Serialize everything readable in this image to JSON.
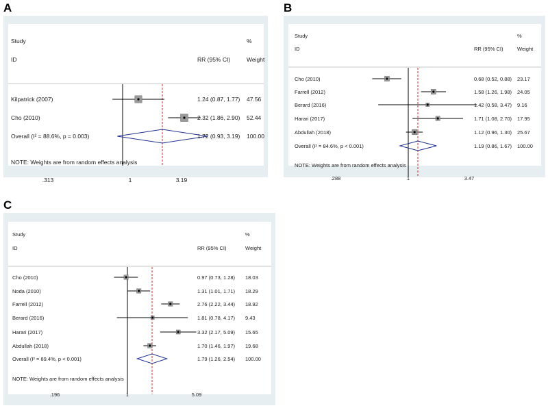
{
  "colors": {
    "bg": "#e7eef2",
    "plot": "#ffffff",
    "ref": "#d12c2c",
    "diamond": "#1f2f8f"
  },
  "chart_data": [
    {
      "panel": "A",
      "type": "forest",
      "header": {
        "study": "Study",
        "id": "ID",
        "rr": "RR (95% CI)",
        "pct": "%",
        "weight": "Weight"
      },
      "studies": [
        {
          "name": "Kilpatrick (2007)",
          "rr": 1.24,
          "lo": 0.87,
          "hi": 1.77,
          "label": "1.24 (0.87, 1.77)",
          "weight": "47.56"
        },
        {
          "name": "Cho (2010)",
          "rr": 2.32,
          "lo": 1.86,
          "hi": 2.9,
          "label": "2.32 (1.86, 2.90)",
          "weight": "52.44"
        }
      ],
      "overall": {
        "name": "Overall (I² = 88.6%, p = 0.003)",
        "rr": 1.72,
        "lo": 0.93,
        "hi": 3.19,
        "label": "1.72 (0.93, 3.19)",
        "weight": "100.00"
      },
      "note": "NOTE: Weights are from random effects analysis",
      "ticks": [
        {
          "value": 0.313,
          "label": ".313"
        },
        {
          "value": 1,
          "label": "1"
        },
        {
          "value": 3.19,
          "label": "3.19"
        }
      ],
      "xlim": [
        0.313,
        3.19
      ]
    },
    {
      "panel": "B",
      "type": "forest",
      "header": {
        "study": "Study",
        "id": "ID",
        "rr": "RR (95% CI)",
        "pct": "%",
        "weight": "Weight"
      },
      "studies": [
        {
          "name": "Cho (2010)",
          "rr": 0.68,
          "lo": 0.52,
          "hi": 0.88,
          "label": "0.68 (0.52, 0.88)",
          "weight": "23.17"
        },
        {
          "name": "Farrell (2012)",
          "rr": 1.58,
          "lo": 1.26,
          "hi": 1.98,
          "label": "1.58 (1.26, 1.98)",
          "weight": "24.05"
        },
        {
          "name": "Berard (2016)",
          "rr": 1.42,
          "lo": 0.58,
          "hi": 3.47,
          "label": "1.42 (0.58, 3.47)",
          "weight": "9.16"
        },
        {
          "name": "Harari (2017)",
          "rr": 1.71,
          "lo": 1.08,
          "hi": 2.7,
          "label": "1.71 (1.08, 2.70)",
          "weight": "17.95"
        },
        {
          "name": "Abdullah (2018)",
          "rr": 1.12,
          "lo": 0.96,
          "hi": 1.3,
          "label": "1.12 (0.96, 1.30)",
          "weight": "25.67"
        }
      ],
      "overall": {
        "name": "Overall (I² = 84.6%, p < 0.001)",
        "rr": 1.19,
        "lo": 0.86,
        "hi": 1.67,
        "label": "1.19 (0.86, 1.67)",
        "weight": "100.00"
      },
      "note": "NOTE: Weights are from random effects analysis",
      "ticks": [
        {
          "value": 0.288,
          "label": ".288"
        },
        {
          "value": 1,
          "label": "1"
        },
        {
          "value": 3.47,
          "label": "3.47"
        }
      ],
      "xlim": [
        0.288,
        3.47
      ]
    },
    {
      "panel": "C",
      "type": "forest",
      "header": {
        "study": "Study",
        "id": "ID",
        "rr": "RR (95% CI)",
        "pct": "%",
        "weight": "Weight"
      },
      "studies": [
        {
          "name": "Cho (2010)",
          "rr": 0.97,
          "lo": 0.73,
          "hi": 1.28,
          "label": "0.97 (0.73, 1.28)",
          "weight": "18.03"
        },
        {
          "name": "Noda (2010)",
          "rr": 1.31,
          "lo": 1.01,
          "hi": 1.71,
          "label": "1.31 (1.01, 1.71)",
          "weight": "18.29"
        },
        {
          "name": "Farrell (2012)",
          "rr": 2.76,
          "lo": 2.22,
          "hi": 3.44,
          "label": "2.76 (2.22, 3.44)",
          "weight": "18.92"
        },
        {
          "name": "Berard (2016)",
          "rr": 1.81,
          "lo": 0.78,
          "hi": 4.17,
          "label": "1.81 (0.78, 4.17)",
          "weight": "9.43"
        },
        {
          "name": "Harari (2017)",
          "rr": 3.32,
          "lo": 2.17,
          "hi": 5.09,
          "label": "3.32 (2.17, 5.09)",
          "weight": "15.65"
        },
        {
          "name": "Abdullah (2018)",
          "rr": 1.7,
          "lo": 1.46,
          "hi": 1.97,
          "label": "1.70 (1.46, 1.97)",
          "weight": "19.68"
        }
      ],
      "overall": {
        "name": "Overall (I² = 89.4%, p < 0.001)",
        "rr": 1.79,
        "lo": 1.26,
        "hi": 2.54,
        "label": "1.79 (1.26, 2.54)",
        "weight": "100.00"
      },
      "note": "NOTE: Weights are from random effects analysis",
      "ticks": [
        {
          "value": 0.196,
          "label": ".196"
        },
        {
          "value": 1,
          "label": "1"
        },
        {
          "value": 5.09,
          "label": "5.09"
        }
      ],
      "xlim": [
        0.196,
        5.09
      ]
    }
  ]
}
